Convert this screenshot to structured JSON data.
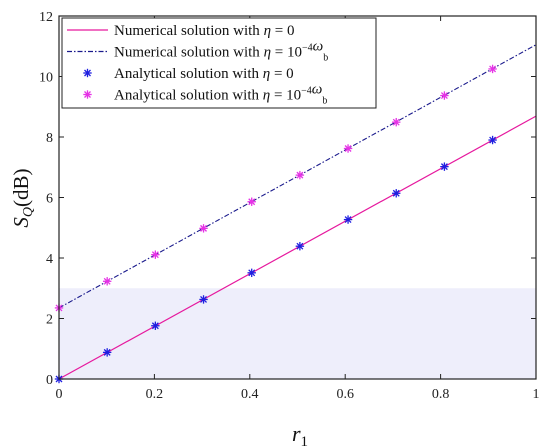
{
  "chart_data": {
    "type": "line",
    "xlabel": {
      "main": "r",
      "sub": "1"
    },
    "ylabel": {
      "main": "S",
      "sub": "Q",
      "unit": "(dB)"
    },
    "xlim": [
      0,
      1
    ],
    "ylim": [
      0,
      12
    ],
    "xticks": [
      0,
      0.2,
      0.4,
      0.6,
      0.8,
      1
    ],
    "xtick_labels": [
      "0",
      "0.2",
      "0.4",
      "0.6",
      "0.8",
      "1"
    ],
    "yticks": [
      0,
      2,
      4,
      6,
      8,
      10,
      12
    ],
    "ytick_labels": [
      "0",
      "2",
      "4",
      "6",
      "8",
      "10",
      "12"
    ],
    "grid": false,
    "legend_position": "top-left",
    "shaded_region": {
      "x": [
        0,
        1
      ],
      "y": [
        0,
        3
      ],
      "color": "#eeeefb"
    },
    "series": [
      {
        "kind": "line",
        "style": "solid",
        "color": "#e6199e",
        "legend_parts": [
          {
            "t": "Numerical solution with ",
            "m": false
          },
          {
            "t": "η",
            "m": true
          },
          {
            "t": " = 0",
            "m": false
          }
        ],
        "x": [
          0,
          1
        ],
        "y": [
          0,
          8.69
        ]
      },
      {
        "kind": "line",
        "style": "dashdot",
        "color": "#1a1a8c",
        "legend_parts": [
          {
            "t": "Numerical solution with ",
            "m": false
          },
          {
            "t": "η",
            "m": true
          },
          {
            "t": " = 10",
            "m": false
          },
          {
            "t": "−4",
            "m": false,
            "sup": true
          },
          {
            "t": "ω",
            "m": true
          },
          {
            "t": "b",
            "m": false,
            "sub": true
          }
        ],
        "x": [
          0,
          1
        ],
        "y": [
          2.35,
          11.05
        ]
      },
      {
        "kind": "scatter",
        "marker": "asterisk",
        "color": "#1f1fe0",
        "legend_parts": [
          {
            "t": "Analytical solution with ",
            "m": false
          },
          {
            "t": "η",
            "m": true
          },
          {
            "t": " = 0",
            "m": false
          }
        ],
        "x": [
          0,
          0.101,
          0.202,
          0.303,
          0.404,
          0.505,
          0.606,
          0.707,
          0.808,
          0.909
        ],
        "y": [
          0,
          0.88,
          1.76,
          2.63,
          3.51,
          4.39,
          5.27,
          6.14,
          7.02,
          7.9
        ]
      },
      {
        "kind": "scatter",
        "marker": "asterisk",
        "color": "#e633e6",
        "legend_parts": [
          {
            "t": "Analytical solution with ",
            "m": false
          },
          {
            "t": "η",
            "m": true
          },
          {
            "t": " = 10",
            "m": false
          },
          {
            "t": "−4",
            "m": false,
            "sup": true
          },
          {
            "t": "ω",
            "m": true
          },
          {
            "t": "b",
            "m": false,
            "sub": true
          }
        ],
        "x": [
          0,
          0.101,
          0.202,
          0.303,
          0.404,
          0.505,
          0.606,
          0.707,
          0.808,
          0.909
        ],
        "y": [
          2.35,
          3.23,
          4.11,
          4.98,
          5.86,
          6.74,
          7.62,
          8.49,
          9.37,
          10.25
        ]
      }
    ]
  }
}
